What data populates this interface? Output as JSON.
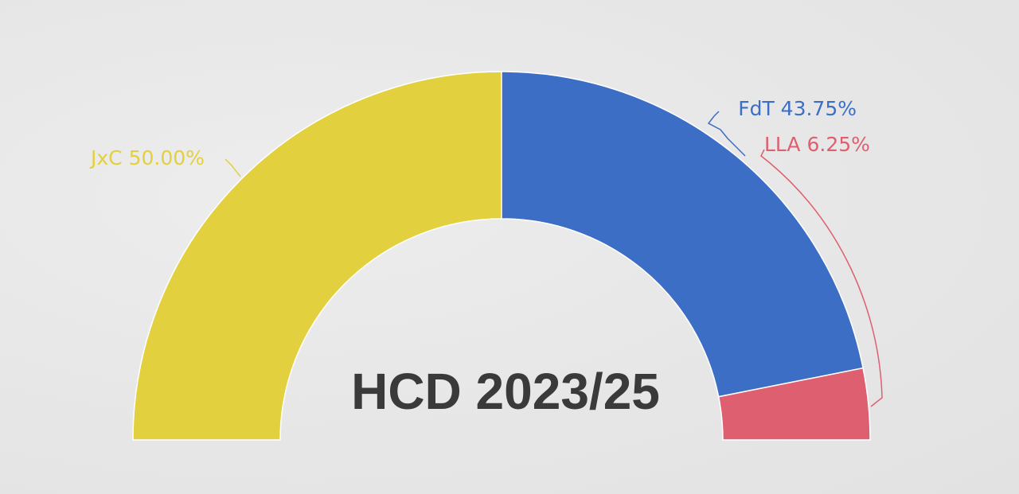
{
  "chart_data": {
    "type": "pie",
    "variant": "semicircle-donut",
    "title": "HCD 2023/25",
    "series": [
      {
        "name": "JxC",
        "value": 50.0,
        "label": "JxC 50.00%",
        "color": "#e2d03e"
      },
      {
        "name": "FdT",
        "value": 43.75,
        "label": "FdT 43.75%",
        "color": "#3d6ec5"
      },
      {
        "name": "LLA",
        "value": 6.25,
        "label": "LLA 6.25%",
        "color": "#de5f70"
      }
    ],
    "legend": "none"
  }
}
